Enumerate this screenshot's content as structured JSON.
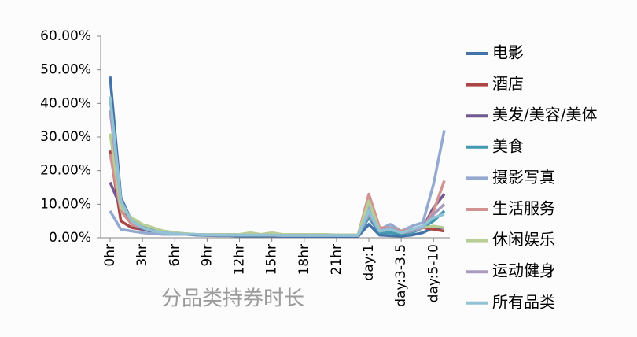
{
  "chart_data": {
    "type": "line",
    "x_label": "分品类持券时长",
    "categories": [
      "0hr",
      null,
      null,
      "3hr",
      null,
      null,
      "6hr",
      null,
      null,
      "9hr",
      null,
      null,
      "12hr",
      null,
      null,
      "15hr",
      null,
      null,
      "18hr",
      null,
      null,
      "21hr",
      null,
      null,
      "day:1",
      null,
      null,
      "day:3-3.5",
      null,
      null,
      "day:5-10",
      null
    ],
    "ylim": [
      0,
      60
    ],
    "yticks": [
      {
        "value": 0,
        "label": "0.00%"
      },
      {
        "value": 10,
        "label": "10.00%"
      },
      {
        "value": 20,
        "label": "20.00%"
      },
      {
        "value": 30,
        "label": "30.00%"
      },
      {
        "value": 40,
        "label": "40.00%"
      },
      {
        "value": 50,
        "label": "50.00%"
      },
      {
        "value": 60,
        "label": "60.00%"
      }
    ],
    "legend": "right",
    "series": [
      {
        "name": "电影",
        "color": "#4572a7",
        "values": [
          48,
          12,
          5,
          3,
          2,
          1.5,
          1.2,
          1,
          0.8,
          0.7,
          0.6,
          0.6,
          0.5,
          0.5,
          0.5,
          0.5,
          0.4,
          0.4,
          0.4,
          0.4,
          0.4,
          0.4,
          0.4,
          0.4,
          4,
          0.8,
          0.6,
          0.5,
          0.8,
          1.5,
          3,
          3
        ]
      },
      {
        "name": "酒店",
        "color": "#aa4643",
        "values": [
          26,
          5,
          3,
          2.5,
          2,
          1.5,
          1.2,
          1,
          1,
          0.9,
          0.8,
          0.8,
          0.8,
          0.8,
          0.8,
          0.7,
          0.7,
          0.7,
          0.7,
          0.7,
          0.7,
          0.7,
          0.7,
          0.7,
          12,
          2.5,
          2.5,
          1.5,
          2,
          3,
          2.5,
          2
        ]
      },
      {
        "name": "美发/美容/美体",
        "color": "#71588f",
        "values": [
          16.5,
          9,
          4,
          2.5,
          1.8,
          1.5,
          1.2,
          1,
          1,
          0.9,
          0.8,
          0.8,
          0.8,
          0.8,
          0.8,
          0.7,
          0.7,
          0.7,
          0.7,
          0.7,
          0.7,
          0.7,
          0.7,
          0.7,
          8,
          2,
          2.5,
          1.5,
          2,
          3,
          9,
          13
        ]
      },
      {
        "name": "美食",
        "color": "#4198af",
        "values": [
          42,
          10,
          5,
          3.5,
          2.5,
          2,
          1.5,
          1.2,
          1,
          1,
          0.9,
          0.9,
          0.8,
          0.8,
          0.8,
          0.8,
          0.7,
          0.7,
          0.7,
          0.7,
          0.7,
          0.7,
          0.7,
          0.7,
          6,
          1.5,
          1.5,
          1,
          1.5,
          3,
          5,
          8
        ]
      },
      {
        "name": "摄影写真",
        "color": "#93a9cf",
        "values": [
          8,
          2.5,
          2,
          1.5,
          1.2,
          1,
          1,
          1,
          1,
          0.9,
          0.9,
          0.9,
          0.9,
          0.9,
          0.9,
          0.9,
          0.8,
          0.8,
          0.8,
          0.8,
          0.8,
          0.8,
          0.8,
          0.8,
          9,
          2.5,
          4,
          2,
          3.5,
          4.5,
          16,
          32
        ]
      },
      {
        "name": "生活服务",
        "color": "#d19392",
        "values": [
          25,
          8,
          4,
          3,
          2,
          1.5,
          1.2,
          1,
          1,
          0.9,
          0.8,
          0.8,
          0.8,
          0.8,
          0.8,
          0.8,
          0.7,
          0.7,
          0.7,
          0.7,
          0.7,
          0.7,
          0.7,
          0.7,
          13,
          3,
          3,
          2,
          2.5,
          3,
          8,
          17
        ]
      },
      {
        "name": "休闲娱乐",
        "color": "#b9cd96",
        "values": [
          31,
          9,
          6,
          4,
          3,
          2,
          1.5,
          1.2,
          1,
          1,
          1,
          1,
          1,
          1.5,
          1,
          1.5,
          1,
          1,
          1,
          1,
          1,
          0.9,
          0.9,
          0.9,
          11,
          2,
          2.5,
          1.5,
          2,
          3,
          3.5,
          3
        ]
      },
      {
        "name": "运动健身",
        "color": "#a99bbd",
        "values": [
          38,
          11,
          5,
          3,
          2,
          1.5,
          1.2,
          1,
          1,
          0.9,
          0.8,
          0.8,
          0.8,
          0.8,
          0.8,
          0.8,
          0.7,
          0.7,
          0.7,
          0.7,
          0.7,
          0.7,
          0.7,
          0.7,
          7,
          2,
          3,
          1.5,
          2,
          3,
          7,
          10
        ]
      },
      {
        "name": "所有品类",
        "color": "#91c3d5",
        "values": [
          42,
          11,
          5,
          3,
          2,
          1.5,
          1.2,
          1,
          1,
          0.9,
          0.8,
          0.8,
          0.8,
          0.8,
          0.8,
          0.8,
          0.7,
          0.7,
          0.7,
          0.7,
          0.7,
          0.7,
          0.7,
          0.7,
          8,
          2,
          2.5,
          1.5,
          2.5,
          3.5,
          6,
          7
        ]
      }
    ]
  }
}
